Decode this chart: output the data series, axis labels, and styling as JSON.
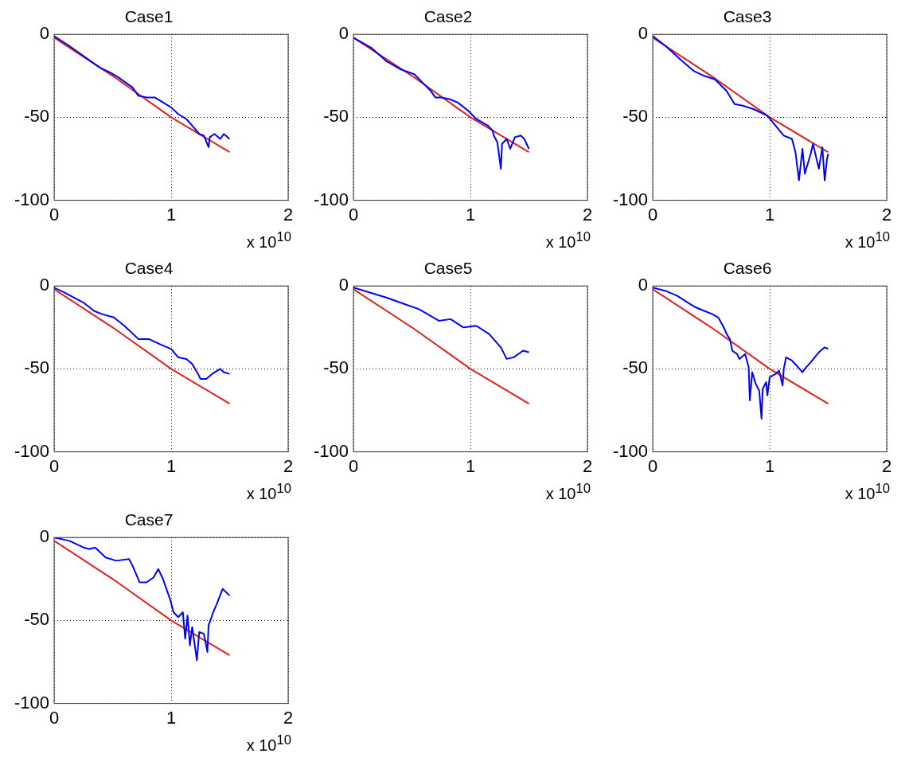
{
  "chart_data": [
    {
      "type": "line",
      "title": "Case1",
      "xlim": [
        0,
        2
      ],
      "xticks": [
        0,
        1,
        2
      ],
      "ylim": [
        -100,
        0
      ],
      "yticks": [
        -100,
        -50,
        0
      ],
      "grid": true,
      "marker": "none",
      "annotations": [
        "x 10$^{10}$"
      ],
      "series": [
        {
          "color": "#0000ff",
          "x": [
            0,
            0.13,
            0.25,
            0.39,
            0.48,
            0.55,
            0.67,
            0.72,
            0.79,
            0.86,
            0.93,
            1.0,
            1.06,
            1.13,
            1.18,
            1.24,
            1.28,
            1.32,
            1.33,
            1.37,
            1.42,
            1.45,
            1.5
          ],
          "values": [
            -1,
            -7,
            -13,
            -20,
            -23,
            -26,
            -32,
            -37,
            -38,
            -38,
            -41,
            -44,
            -48,
            -51,
            -55,
            -60,
            -61,
            -68,
            -62,
            -60,
            -63,
            -60,
            -63
          ]
        },
        {
          "color": "#dd2222",
          "x": [
            0,
            0.5,
            1,
            1.5
          ],
          "values": [
            -2,
            -25,
            -50,
            -71
          ]
        }
      ]
    },
    {
      "type": "line",
      "title": "Case2",
      "xlim": [
        0,
        2
      ],
      "xticks": [
        0,
        1,
        2
      ],
      "ylim": [
        -100,
        0
      ],
      "yticks": [
        -100,
        -50,
        0
      ],
      "grid": true,
      "marker": "none",
      "annotations": [
        "x 10$^{10}$"
      ],
      "series": [
        {
          "color": "#0000ff",
          "x": [
            0,
            0.15,
            0.28,
            0.4,
            0.52,
            0.59,
            0.66,
            0.7,
            0.75,
            0.82,
            0.89,
            0.98,
            1.05,
            1.15,
            1.19,
            1.2,
            1.23,
            1.26,
            1.27,
            1.31,
            1.34,
            1.38,
            1.43,
            1.46,
            1.5
          ],
          "values": [
            -2,
            -8,
            -16,
            -21,
            -24,
            -29,
            -34,
            -38,
            -38,
            -39,
            -41,
            -46,
            -51,
            -55,
            -58,
            -61,
            -65,
            -81,
            -66,
            -63,
            -69,
            -62,
            -61,
            -63,
            -69
          ]
        },
        {
          "color": "#dd2222",
          "x": [
            0,
            0.5,
            1,
            1.5
          ],
          "values": [
            -2,
            -25,
            -50,
            -71
          ]
        }
      ]
    },
    {
      "type": "line",
      "title": "Case3",
      "xlim": [
        0,
        2
      ],
      "xticks": [
        0,
        1,
        2
      ],
      "ylim": [
        -100,
        0
      ],
      "yticks": [
        -100,
        -50,
        0
      ],
      "grid": true,
      "marker": "none",
      "annotations": [
        "x 10$^{10}$"
      ],
      "series": [
        {
          "color": "#0000ff",
          "x": [
            0,
            0.11,
            0.25,
            0.35,
            0.44,
            0.53,
            0.63,
            0.7,
            0.77,
            0.86,
            0.98,
            1.05,
            1.12,
            1.19,
            1.22,
            1.25,
            1.28,
            1.3,
            1.35,
            1.37,
            1.42,
            1.45,
            1.47,
            1.49,
            1.5
          ],
          "values": [
            -1,
            -7,
            -16,
            -22,
            -25,
            -27,
            -34,
            -42,
            -43,
            -45,
            -49,
            -55,
            -61,
            -63,
            -71,
            -88,
            -69,
            -84,
            -72,
            -66,
            -81,
            -68,
            -88,
            -75,
            -72
          ]
        },
        {
          "color": "#dd2222",
          "x": [
            0,
            0.5,
            1,
            1.5
          ],
          "values": [
            -2,
            -25,
            -50,
            -71
          ]
        }
      ]
    },
    {
      "type": "line",
      "title": "Case4",
      "xlim": [
        0,
        2
      ],
      "xticks": [
        0,
        1,
        2
      ],
      "ylim": [
        -100,
        0
      ],
      "yticks": [
        -100,
        -50,
        0
      ],
      "grid": true,
      "marker": "none",
      "annotations": [
        "x 10$^{10}$"
      ],
      "series": [
        {
          "color": "#0000ff",
          "x": [
            0,
            0.09,
            0.25,
            0.34,
            0.41,
            0.51,
            0.6,
            0.72,
            0.81,
            0.9,
            1.0,
            1.06,
            1.13,
            1.18,
            1.23,
            1.25,
            1.3,
            1.35,
            1.42,
            1.45,
            1.5
          ],
          "values": [
            -1,
            -4,
            -10,
            -15,
            -17,
            -19,
            -24,
            -32,
            -32,
            -35,
            -38,
            -43,
            -44,
            -47,
            -53,
            -56,
            -56,
            -53,
            -50,
            -52,
            -53
          ]
        },
        {
          "color": "#dd2222",
          "x": [
            0,
            0.5,
            1,
            1.5
          ],
          "values": [
            -2,
            -25,
            -50,
            -71
          ]
        }
      ]
    },
    {
      "type": "line",
      "title": "Case5",
      "xlim": [
        0,
        2
      ],
      "xticks": [
        0,
        1,
        2
      ],
      "ylim": [
        -100,
        0
      ],
      "yticks": [
        -100,
        -50,
        0
      ],
      "grid": true,
      "marker": "none",
      "annotations": [
        "x 10$^{10}$"
      ],
      "series": [
        {
          "color": "#0000ff",
          "x": [
            0,
            0.28,
            0.56,
            0.73,
            0.83,
            0.94,
            1.05,
            1.16,
            1.26,
            1.31,
            1.37,
            1.45,
            1.5
          ],
          "values": [
            -1,
            -7,
            -14,
            -21,
            -20,
            -25,
            -24,
            -29,
            -37,
            -44,
            -43,
            -39,
            -40
          ]
        },
        {
          "color": "#dd2222",
          "x": [
            0,
            0.5,
            1,
            1.5
          ],
          "values": [
            -2,
            -25,
            -50,
            -71
          ]
        }
      ]
    },
    {
      "type": "line",
      "title": "Case6",
      "xlim": [
        0,
        2
      ],
      "xticks": [
        0,
        1,
        2
      ],
      "ylim": [
        -100,
        0
      ],
      "yticks": [
        -100,
        -50,
        0
      ],
      "grid": true,
      "marker": "none",
      "annotations": [
        "x 10$^{10}$"
      ],
      "series": [
        {
          "color": "#0000ff",
          "x": [
            0,
            0.11,
            0.21,
            0.3,
            0.37,
            0.44,
            0.51,
            0.56,
            0.6,
            0.64,
            0.66,
            0.68,
            0.72,
            0.74,
            0.79,
            0.82,
            0.83,
            0.85,
            0.88,
            0.91,
            0.93,
            0.94,
            0.97,
            0.98,
            1.0,
            1.05,
            1.08,
            1.11,
            1.12,
            1.14,
            1.19,
            1.23,
            1.28,
            1.3,
            1.35,
            1.42,
            1.47,
            1.5
          ],
          "values": [
            -1,
            -3,
            -6,
            -10,
            -13,
            -15,
            -17,
            -19,
            -24,
            -30,
            -32,
            -39,
            -41,
            -44,
            -41,
            -49,
            -69,
            -52,
            -59,
            -63,
            -80,
            -62,
            -58,
            -66,
            -55,
            -53,
            -51,
            -60,
            -50,
            -43,
            -45,
            -48,
            -52,
            -50,
            -46,
            -40,
            -37,
            -38
          ]
        },
        {
          "color": "#dd2222",
          "x": [
            0,
            0.5,
            1,
            1.5
          ],
          "values": [
            -2,
            -25,
            -50,
            -71
          ]
        }
      ]
    },
    {
      "type": "line",
      "title": "Case7",
      "xlim": [
        0,
        2
      ],
      "xticks": [
        0,
        1,
        2
      ],
      "ylim": [
        -100,
        0
      ],
      "yticks": [
        -100,
        -50,
        0
      ],
      "grid": true,
      "marker": "none",
      "annotations": [
        "x 10$^{10}$"
      ],
      "series": [
        {
          "color": "#0000ff",
          "x": [
            0,
            0.13,
            0.25,
            0.3,
            0.35,
            0.44,
            0.53,
            0.64,
            0.67,
            0.73,
            0.79,
            0.85,
            0.89,
            0.93,
            0.99,
            1.02,
            1.06,
            1.1,
            1.12,
            1.14,
            1.16,
            1.18,
            1.22,
            1.24,
            1.28,
            1.31,
            1.32,
            1.36,
            1.39,
            1.44,
            1.5
          ],
          "values": [
            0,
            -2,
            -6,
            -7,
            -6,
            -12,
            -14,
            -13,
            -17,
            -27,
            -27,
            -24,
            -19,
            -25,
            -37,
            -45,
            -48,
            -45,
            -61,
            -47,
            -65,
            -54,
            -74,
            -57,
            -58,
            -69,
            -53,
            -45,
            -40,
            -31,
            -35
          ]
        },
        {
          "color": "#dd2222",
          "x": [
            0,
            0.5,
            1,
            1.5
          ],
          "values": [
            -2,
            -25,
            -50,
            -71
          ]
        }
      ]
    }
  ]
}
